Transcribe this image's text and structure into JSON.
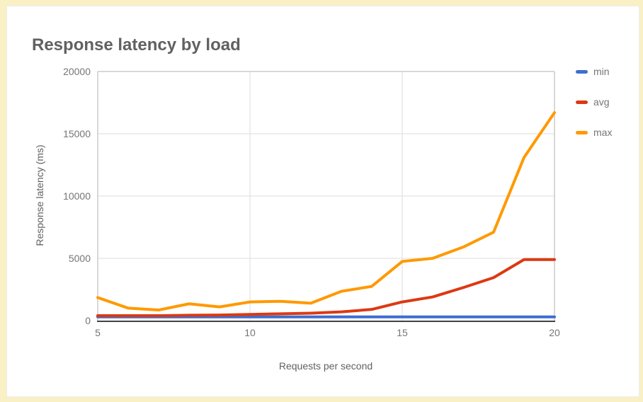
{
  "page": {
    "background_color": "#faf0c5",
    "card_background": "#ffffff"
  },
  "chart": {
    "title": "Response latency by load",
    "x_axis_title": "Requests per second",
    "y_axis_title": "Response latency (ms)"
  },
  "chart_data": {
    "type": "line",
    "title": "Response latency by load",
    "xlabel": "Requests per second",
    "ylabel": "Response latency (ms)",
    "x": [
      5,
      6,
      7,
      8,
      9,
      10,
      11,
      12,
      13,
      14,
      15,
      16,
      17,
      18,
      19,
      20
    ],
    "xlim": [
      5,
      20
    ],
    "ylim": [
      0,
      20000
    ],
    "x_tick_values": [
      5,
      10,
      15,
      20
    ],
    "y_tick_values": [
      0,
      5000,
      10000,
      15000,
      20000
    ],
    "x_tick_labels": [
      "5",
      "10",
      "15",
      "20"
    ],
    "y_tick_labels": [
      "0",
      "5000",
      "10000",
      "15000",
      "20000"
    ],
    "grid": true,
    "legend_position": "right",
    "series": [
      {
        "name": "min",
        "color": "#3d6ed0",
        "values": [
          300,
          300,
          300,
          300,
          300,
          300,
          300,
          300,
          300,
          300,
          300,
          300,
          300,
          300,
          300,
          300
        ]
      },
      {
        "name": "avg",
        "color": "#dc3912",
        "values": [
          400,
          400,
          400,
          430,
          450,
          500,
          550,
          600,
          700,
          900,
          1500,
          1900,
          2650,
          3450,
          4900,
          4900
        ]
      },
      {
        "name": "max",
        "color": "#ff9900",
        "values": [
          1850,
          1000,
          850,
          1350,
          1100,
          1500,
          1550,
          1400,
          2350,
          2750,
          4750,
          5000,
          5900,
          7100,
          13100,
          16700
        ]
      }
    ],
    "style": {
      "gridline_color": "#e3e3e3",
      "plot_border_color": "#cccccc",
      "baseline_color": "#424242",
      "line_width": 4
    }
  }
}
